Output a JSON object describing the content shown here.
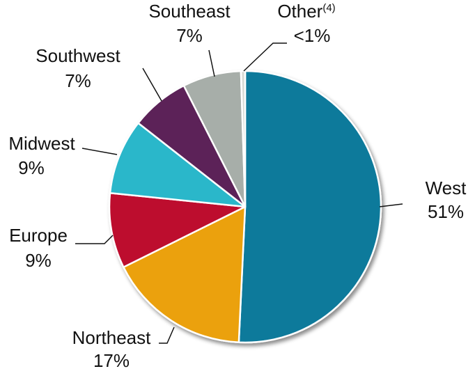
{
  "chart_data": {
    "type": "pie",
    "categories": [
      "West",
      "Northeast",
      "Europe",
      "Midwest",
      "Southwest",
      "Southeast",
      "Other"
    ],
    "label_superscripts": [
      null,
      null,
      null,
      null,
      null,
      null,
      "(4)"
    ],
    "values": [
      51,
      17,
      9,
      9,
      7,
      7,
      0.5
    ],
    "value_labels": [
      "51%",
      "17%",
      "9%",
      "9%",
      "7%",
      "7%",
      "<1%"
    ],
    "colors": [
      "#0b7a9b",
      "#eba10b",
      "#bd0d2e",
      "#2cb7ca",
      "#5b2459",
      "#a7aea9",
      "#d9dbd6"
    ]
  }
}
